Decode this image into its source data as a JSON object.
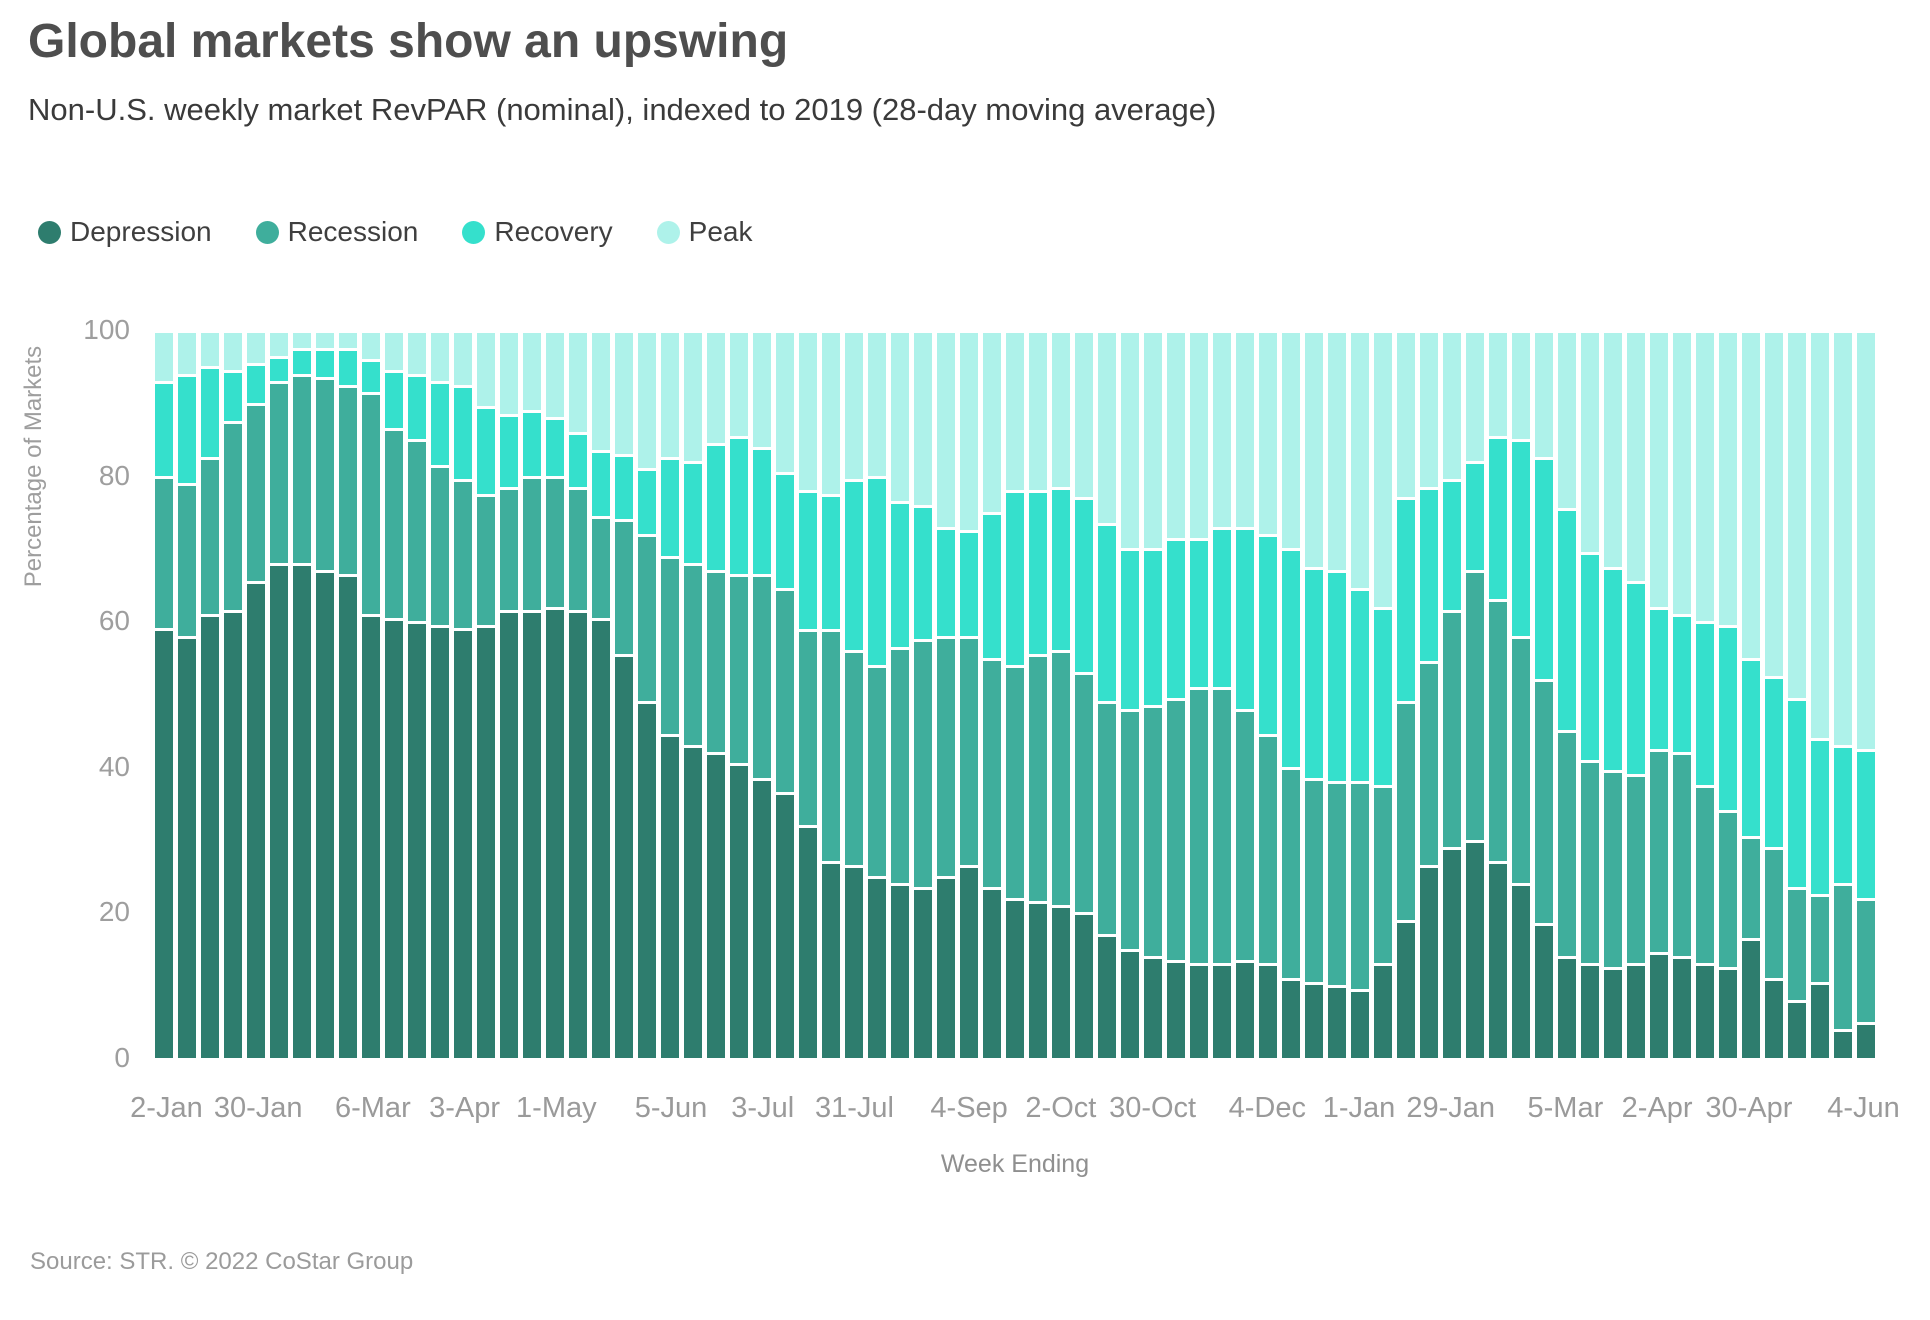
{
  "header": {
    "title": "Global markets show an upswing",
    "subtitle": "Non-U.S. weekly market RevPAR (nominal), indexed to 2019 (28-day moving average)"
  },
  "source_note": "Source: STR. © 2022 CoStar Group",
  "colors": {
    "depression": "#2e7d6e",
    "recession": "#3fae9c",
    "recovery": "#35e0cc",
    "peak": "#aef2ea"
  },
  "chart_data": {
    "type": "bar",
    "stacked": true,
    "stack_total": 100,
    "title": "Global markets show an upswing",
    "xlabel": "Week Ending",
    "ylabel": "Percentage of Markets",
    "ylim": [
      0,
      100
    ],
    "yticks": [
      0,
      20,
      40,
      60,
      80,
      100
    ],
    "grid": false,
    "legend_position": "top-left",
    "series_order": [
      "Depression",
      "Recession",
      "Recovery",
      "Peak"
    ],
    "legend": [
      {
        "label": "Depression",
        "key": "depression",
        "color": "#2e7d6e"
      },
      {
        "label": "Recession",
        "key": "recession",
        "color": "#3fae9c"
      },
      {
        "label": "Recovery",
        "key": "recovery",
        "color": "#35e0cc"
      },
      {
        "label": "Peak",
        "key": "peak",
        "color": "#aef2ea"
      }
    ],
    "x_tick_labels": [
      "2-Jan",
      "30-Jan",
      "6-Mar",
      "3-Apr",
      "1-May",
      "5-Jun",
      "3-Jul",
      "31-Jul",
      "4-Sep",
      "2-Oct",
      "30-Oct",
      "4-Dec",
      "1-Jan",
      "29-Jan",
      "5-Mar",
      "2-Apr",
      "30-Apr",
      "4-Jun"
    ],
    "x_tick_bar_indices": [
      0,
      4,
      9,
      13,
      17,
      22,
      26,
      30,
      35,
      39,
      43,
      48,
      52,
      56,
      61,
      65,
      69,
      74
    ],
    "bars_note": "Each bar = one week. Values are cumulative stack tops in percent: [depression_top, recession_top, recovery_top]; Peak fills remainder to 100.",
    "bars": [
      [
        59,
        80,
        93
      ],
      [
        58,
        79,
        94
      ],
      [
        61,
        82.5,
        95
      ],
      [
        61.5,
        87.5,
        94.5
      ],
      [
        65.5,
        90,
        95.5
      ],
      [
        68,
        93,
        96.5
      ],
      [
        68,
        94,
        97.5
      ],
      [
        67,
        93.5,
        97.5
      ],
      [
        66.5,
        92.5,
        97.5
      ],
      [
        61,
        91.5,
        96
      ],
      [
        60.5,
        86.5,
        94.5
      ],
      [
        60,
        85,
        94
      ],
      [
        59.5,
        81.5,
        93
      ],
      [
        59,
        79.5,
        92.5
      ],
      [
        59.5,
        77.5,
        89.5
      ],
      [
        61.5,
        78.5,
        88.5
      ],
      [
        61.5,
        80,
        89
      ],
      [
        62,
        80,
        88
      ],
      [
        61.5,
        78.5,
        86
      ],
      [
        60.5,
        74.5,
        83.5
      ],
      [
        55.5,
        74,
        83
      ],
      [
        49,
        72,
        81
      ],
      [
        44.5,
        69,
        82.5
      ],
      [
        43,
        68,
        82
      ],
      [
        42,
        67,
        84.5
      ],
      [
        40.5,
        66.5,
        85.5
      ],
      [
        38.5,
        66.5,
        84
      ],
      [
        36.5,
        64.5,
        80.5
      ],
      [
        32,
        59,
        78
      ],
      [
        27,
        59,
        77.5
      ],
      [
        26.5,
        56,
        79.5
      ],
      [
        25,
        54,
        80
      ],
      [
        24,
        56.5,
        76.5
      ],
      [
        23.5,
        57.5,
        76
      ],
      [
        25,
        58,
        73
      ],
      [
        26.5,
        58,
        72.5
      ],
      [
        23.5,
        55,
        75
      ],
      [
        22,
        54,
        78
      ],
      [
        21.5,
        55.5,
        78
      ],
      [
        21,
        56,
        78.5
      ],
      [
        20,
        53,
        77
      ],
      [
        17,
        49,
        73.5
      ],
      [
        15,
        48,
        70
      ],
      [
        14,
        48.5,
        70
      ],
      [
        13.5,
        49.5,
        71.5
      ],
      [
        13,
        51,
        71.5
      ],
      [
        13,
        51,
        73
      ],
      [
        13.5,
        48,
        73
      ],
      [
        13,
        44.5,
        72
      ],
      [
        11,
        40,
        70
      ],
      [
        10.5,
        38.5,
        67.5
      ],
      [
        10,
        38,
        67
      ],
      [
        9.5,
        38,
        64.5
      ],
      [
        13,
        37.5,
        62
      ],
      [
        19,
        49,
        77
      ],
      [
        26.5,
        54.5,
        78.5
      ],
      [
        29,
        61.5,
        79.5
      ],
      [
        30,
        67,
        82
      ],
      [
        27,
        63,
        85.5
      ],
      [
        24,
        58,
        85
      ],
      [
        18.5,
        52,
        82.5
      ],
      [
        14,
        45,
        75.5
      ],
      [
        13,
        41,
        69.5
      ],
      [
        12.5,
        39.5,
        67.5
      ],
      [
        13,
        39,
        65.5
      ],
      [
        14.5,
        42.5,
        62
      ],
      [
        14,
        42,
        61
      ],
      [
        13,
        37.5,
        60
      ],
      [
        12.5,
        34,
        59.5
      ],
      [
        16.5,
        30.5,
        55
      ],
      [
        11,
        29,
        52.5
      ],
      [
        8,
        23.5,
        49.5
      ],
      [
        10.5,
        22.5,
        44
      ],
      [
        4,
        24,
        43
      ],
      [
        5,
        22,
        42.5
      ]
    ]
  }
}
